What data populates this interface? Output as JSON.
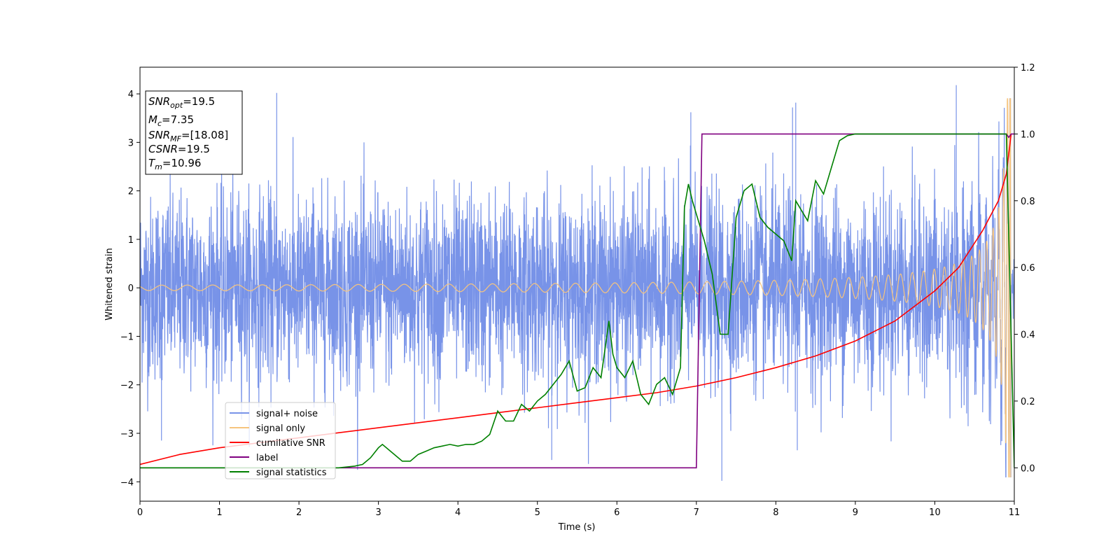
{
  "chart_data": {
    "type": "line",
    "xlabel": "Time (s)",
    "ylabel": "Whitened strain",
    "xlim": [
      0,
      11
    ],
    "ylim": [
      -4.4,
      4.55
    ],
    "y2lim": [
      -0.1,
      1.2
    ],
    "x_ticks": [
      0,
      1,
      2,
      3,
      4,
      5,
      6,
      7,
      8,
      9,
      10,
      11
    ],
    "y_ticks": [
      -4,
      -3,
      -2,
      -1,
      0,
      1,
      2,
      3,
      4
    ],
    "y2_ticks": [
      0.0,
      0.2,
      0.4,
      0.6,
      0.8,
      1.0,
      1.2
    ],
    "y2_tick_labels": [
      "0.0",
      "0.2",
      "0.4",
      "0.6",
      "0.8",
      "1.0",
      "1.2"
    ],
    "legend_position": "lower-left",
    "grid": false,
    "annotation_box": {
      "lines": [
        {
          "base": "SNR",
          "sub": "opt",
          "value": "=19.5"
        },
        {
          "base": "M",
          "sub": "c",
          "value": "=7.35"
        },
        {
          "base": "SNR",
          "sub": "MF",
          "value": "=[18.08]"
        },
        {
          "base": "CSNR",
          "sub": "",
          "value": "=19.5"
        },
        {
          "base": "T",
          "sub": "m",
          "value": "=10.96"
        }
      ]
    },
    "series": [
      {
        "name": "signal+ noise",
        "color": "#7893e8",
        "axis": "left",
        "kind": "noise",
        "noise_std": 0.95,
        "peak_spikes": [
          [
            1.72,
            4.02
          ],
          [
            10.27,
            4.18
          ],
          [
            7.32,
            -3.98
          ],
          [
            0.27,
            -3.15
          ],
          [
            5.18,
            -3.55
          ],
          [
            8.27,
            -3.35
          ],
          [
            6.93,
            3.62
          ],
          [
            8.25,
            3.82
          ],
          [
            8.21,
            3.72
          ]
        ]
      },
      {
        "name": "signal only",
        "color": "#f6c47e",
        "axis": "left",
        "kind": "chirp",
        "t_merge": 10.96
      },
      {
        "name": "cumilative SNR",
        "color": "#ff0000",
        "axis": "right",
        "x": [
          0,
          0.5,
          1,
          1.5,
          2,
          2.5,
          3,
          3.5,
          4,
          4.5,
          5,
          5.5,
          6,
          6.5,
          7,
          7.5,
          8,
          8.5,
          9,
          9.5,
          10,
          10.3,
          10.6,
          10.8,
          10.9,
          10.96
        ],
        "y": [
          0.01,
          0.04,
          0.06,
          0.075,
          0.09,
          0.105,
          0.12,
          0.135,
          0.15,
          0.165,
          0.18,
          0.195,
          0.21,
          0.225,
          0.245,
          0.27,
          0.3,
          0.335,
          0.38,
          0.44,
          0.53,
          0.6,
          0.71,
          0.8,
          0.88,
          1.0
        ]
      },
      {
        "name": "label",
        "color": "#800080",
        "axis": "right",
        "x": [
          0,
          7.0,
          7.07,
          10.9,
          10.93,
          10.96,
          11.0
        ],
        "y": [
          0,
          0,
          1,
          1,
          0.99,
          1,
          1
        ]
      },
      {
        "name": "signal statistics",
        "color": "#008000",
        "axis": "right",
        "x": [
          0,
          0.5,
          1,
          1.5,
          2,
          2.5,
          2.7,
          2.8,
          2.9,
          3.0,
          3.05,
          3.15,
          3.25,
          3.3,
          3.4,
          3.5,
          3.6,
          3.7,
          3.8,
          3.9,
          4.0,
          4.1,
          4.2,
          4.3,
          4.4,
          4.5,
          4.6,
          4.7,
          4.8,
          4.9,
          5.0,
          5.1,
          5.2,
          5.3,
          5.4,
          5.5,
          5.6,
          5.65,
          5.7,
          5.8,
          5.9,
          5.95,
          6.0,
          6.1,
          6.2,
          6.3,
          6.4,
          6.5,
          6.6,
          6.7,
          6.8,
          6.85,
          6.9,
          6.95,
          7.0,
          7.1,
          7.2,
          7.3,
          7.4,
          7.5,
          7.6,
          7.7,
          7.8,
          7.9,
          8.0,
          8.1,
          8.2,
          8.25,
          8.3,
          8.35,
          8.4,
          8.5,
          8.6,
          8.7,
          8.8,
          8.9,
          9.0,
          9.2,
          9.5,
          10.0,
          10.5,
          10.9,
          10.95,
          11.0
        ],
        "y": [
          0.0,
          0.0,
          0.0,
          0.0,
          0.0,
          0.0,
          0.005,
          0.01,
          0.03,
          0.06,
          0.07,
          0.05,
          0.03,
          0.02,
          0.02,
          0.04,
          0.05,
          0.06,
          0.065,
          0.07,
          0.065,
          0.07,
          0.07,
          0.08,
          0.1,
          0.17,
          0.14,
          0.14,
          0.19,
          0.17,
          0.2,
          0.22,
          0.25,
          0.28,
          0.32,
          0.23,
          0.24,
          0.27,
          0.3,
          0.27,
          0.44,
          0.34,
          0.3,
          0.27,
          0.32,
          0.22,
          0.19,
          0.25,
          0.27,
          0.22,
          0.3,
          0.78,
          0.85,
          0.8,
          0.76,
          0.68,
          0.58,
          0.4,
          0.4,
          0.75,
          0.83,
          0.85,
          0.75,
          0.72,
          0.7,
          0.68,
          0.62,
          0.8,
          0.78,
          0.76,
          0.74,
          0.86,
          0.82,
          0.9,
          0.98,
          0.995,
          1.0,
          1.0,
          1.0,
          1.0,
          1.0,
          1.0,
          0.5,
          0.0
        ]
      }
    ]
  }
}
